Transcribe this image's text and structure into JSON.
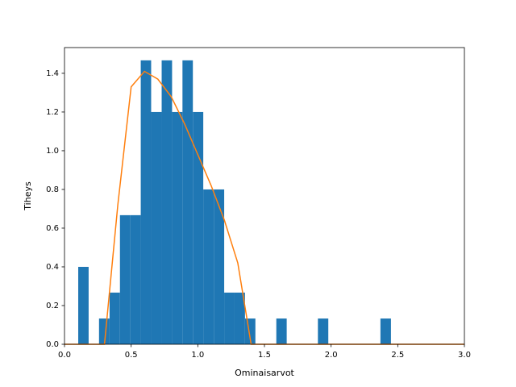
{
  "chart_data": {
    "type": "histogram",
    "xlabel": "Ominaisarvot",
    "ylabel": "Tiheys",
    "bins": [
      0.103,
      0.181,
      0.259,
      0.338,
      0.416,
      0.494,
      0.572,
      0.65,
      0.729,
      0.807,
      0.885,
      0.963,
      1.041,
      1.12,
      1.198,
      1.276,
      1.354,
      1.432,
      1.51,
      1.589,
      1.667,
      1.745,
      1.823,
      1.901,
      1.979,
      2.058,
      2.136,
      2.214,
      2.292,
      2.37,
      2.449
    ],
    "counts": [
      0.4,
      0,
      0.133,
      0.267,
      0.667,
      0.667,
      1.467,
      1.2,
      1.467,
      1.2,
      1.467,
      1.2,
      0.8,
      0.8,
      0.267,
      0.267,
      0.133,
      0,
      0,
      0.133,
      0,
      0,
      0,
      0.133,
      0,
      0,
      0,
      0,
      0,
      0.133
    ],
    "color": "#1f77b4",
    "line": {
      "type": "line",
      "color": "#ff7f0e",
      "x": [
        0,
        0.1,
        0.2,
        0.3,
        0.4,
        0.5,
        0.6,
        0.7,
        0.8,
        0.9,
        1.0,
        1.1,
        1.2,
        1.3,
        1.4,
        1.5,
        1.6,
        1.7,
        1.8,
        1.9,
        2.0,
        2.1,
        2.2,
        2.3,
        2.4,
        2.5,
        2.6,
        2.7,
        2.8,
        2.9,
        3.0
      ],
      "values": [
        0,
        0,
        0,
        0,
        0.72,
        1.33,
        1.41,
        1.37,
        1.28,
        1.14,
        0.98,
        0.82,
        0.64,
        0.42,
        0,
        0,
        0,
        0,
        0,
        0,
        0,
        0,
        0,
        0,
        0,
        0,
        0,
        0,
        0,
        0,
        0
      ]
    },
    "xlim": [
      0,
      3
    ],
    "ylim": [
      0,
      1.533
    ],
    "xticks": [
      {
        "value": 0,
        "label": "0.0"
      },
      {
        "value": 0.5,
        "label": "0.5"
      },
      {
        "value": 1,
        "label": "1.0"
      },
      {
        "value": 1.5,
        "label": "1.5"
      },
      {
        "value": 2,
        "label": "2.0"
      },
      {
        "value": 2.5,
        "label": "2.5"
      },
      {
        "value": 3,
        "label": "3.0"
      }
    ],
    "yticks": [
      {
        "value": 0,
        "label": "0.0"
      },
      0.2,
      0.4,
      0.6,
      0.8,
      {
        "value": 1,
        "label": "1.0"
      },
      1.2,
      1.4
    ]
  }
}
